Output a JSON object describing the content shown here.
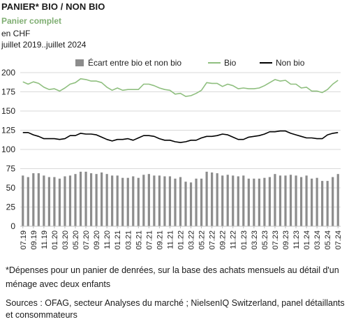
{
  "header": {
    "title": "PANIER* BIO / NON BIO",
    "subtitle": "Panier complet",
    "unit": "en CHF",
    "period": "juillet 2019..juillet 2024"
  },
  "notes": {
    "footnote": "*Dépenses pour un panier de denrées, sur la base des achats mensuels au détail d'un ménage avec deux enfants",
    "source": "Sources : OFAG, secteur Analyses du marché ; NielsenIQ Switzerland, panel détaillants et consommateurs"
  },
  "colors": {
    "bar": "#8c8c8c",
    "bio": "#8fbf7f",
    "non_bio": "#000000",
    "grid": "#d9d9d9",
    "axis": "#bfbfbf"
  },
  "chart_data": {
    "type": "bar",
    "title": "PANIER* BIO / NON BIO",
    "ylim": [
      0,
      200
    ],
    "yticks": [
      0,
      25,
      50,
      75,
      100,
      125,
      150,
      175,
      200
    ],
    "grid": true,
    "legend_position": "top",
    "x_tick_labels": [
      "07.19",
      "09.19",
      "11.19",
      "01.20",
      "03.20",
      "05.20",
      "07.20",
      "09.20",
      "11.20",
      "01.21",
      "03.21",
      "05.21",
      "07.21",
      "09.21",
      "11.21",
      "01.22",
      "03.22",
      "05.22",
      "07.22",
      "09.22",
      "11.22",
      "01.23",
      "03.23",
      "05.23",
      "07.23",
      "09.23",
      "11.23",
      "01.24",
      "03.24",
      "05.24",
      "07.24"
    ],
    "categories": [
      "07.19",
      "08.19",
      "09.19",
      "10.19",
      "11.19",
      "12.19",
      "01.20",
      "02.20",
      "03.20",
      "04.20",
      "05.20",
      "06.20",
      "07.20",
      "08.20",
      "09.20",
      "10.20",
      "11.20",
      "12.20",
      "01.21",
      "02.21",
      "03.21",
      "04.21",
      "05.21",
      "06.21",
      "07.21",
      "08.21",
      "09.21",
      "10.21",
      "11.21",
      "12.21",
      "01.22",
      "02.22",
      "03.22",
      "04.22",
      "05.22",
      "06.22",
      "07.22",
      "08.22",
      "09.22",
      "10.22",
      "11.22",
      "12.22",
      "01.23",
      "02.23",
      "03.23",
      "04.23",
      "05.23",
      "06.23",
      "07.23",
      "08.23",
      "09.23",
      "10.23",
      "11.23",
      "12.23",
      "01.24",
      "02.24",
      "03.24",
      "04.24",
      "05.24",
      "06.24",
      "07.24"
    ],
    "series": [
      {
        "name": "Écart entre bio et non bio",
        "kind": "bar",
        "values": [
          66,
          64,
          69,
          69,
          66,
          64,
          64,
          62,
          65,
          66,
          68,
          71,
          71,
          69,
          68,
          70,
          68,
          66,
          66,
          63,
          63,
          65,
          63,
          67,
          68,
          66,
          66,
          65,
          65,
          62,
          64,
          58,
          57,
          62,
          62,
          71,
          70,
          69,
          66,
          67,
          66,
          65,
          66,
          62,
          62,
          62,
          63,
          64,
          68,
          66,
          66,
          67,
          66,
          64,
          66,
          62,
          63,
          59,
          59,
          64,
          68
        ]
      },
      {
        "name": "Bio",
        "kind": "line",
        "values": [
          188,
          185,
          188,
          186,
          181,
          178,
          179,
          176,
          180,
          185,
          187,
          192,
          191,
          189,
          189,
          187,
          181,
          177,
          180,
          177,
          178,
          178,
          178,
          185,
          185,
          183,
          180,
          178,
          177,
          172,
          173,
          169,
          170,
          173,
          177,
          187,
          186,
          186,
          182,
          185,
          183,
          179,
          180,
          179,
          179,
          180,
          183,
          187,
          191,
          189,
          190,
          185,
          185,
          180,
          181,
          176,
          176,
          174,
          178,
          185,
          190
        ]
      },
      {
        "name": "Non bio",
        "kind": "line",
        "values": [
          122,
          122,
          119,
          117,
          114,
          114,
          114,
          113,
          114,
          118,
          118,
          121,
          120,
          120,
          119,
          116,
          113,
          111,
          113,
          113,
          114,
          112,
          115,
          118,
          118,
          117,
          114,
          112,
          112,
          110,
          109,
          110,
          112,
          112,
          115,
          117,
          117,
          118,
          120,
          119,
          116,
          113,
          113,
          116,
          117,
          118,
          120,
          123,
          123,
          124,
          124,
          121,
          119,
          117,
          115,
          115,
          114,
          114,
          119,
          121,
          122
        ]
      }
    ]
  }
}
